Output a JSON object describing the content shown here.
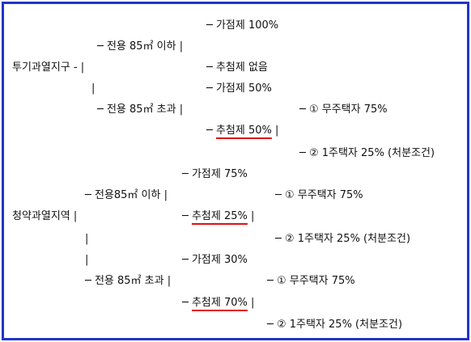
{
  "speculation_zone": {
    "label": "투기과열지구 - |",
    "small": {
      "label": "─ 전용 85㎡ 이하 |",
      "point": "─ 가점제 100%",
      "lottery": "─ 추첨제 없음"
    },
    "connector": "|",
    "large": {
      "label": "─ 전용 85㎡ 초과 |",
      "point": "─ 가점제 50%",
      "lottery": {
        "dash": "─",
        "text": "추첨제 50%",
        "bar": "|"
      },
      "homeless": "─ ① 무주택자 75%",
      "one_house": "─ ② 1주택자 25% (처분조건)"
    }
  },
  "subscription_zone": {
    "label": "청약과열지역 |",
    "connector_1": "|",
    "connector_2": "|",
    "small": {
      "label": "─ 전용85㎡ 이하 |",
      "point": "─ 가점제 75%",
      "lottery": {
        "dash": "─",
        "text": "추첨제 25%",
        "bar": "|"
      },
      "homeless": "─ ① 무주택자 75%",
      "one_house": "─ ② 1주택자 25% (처분조건)"
    },
    "large": {
      "label": "─ 전용 85㎡ 초과 |",
      "point": "─ 가점제 30%",
      "lottery": {
        "dash": "─",
        "text": "추첨제 70%",
        "bar": "|"
      },
      "homeless": "─ ① 무주택자 75%",
      "one_house": "─ ② 1주택자 25% (처분조건)"
    }
  }
}
